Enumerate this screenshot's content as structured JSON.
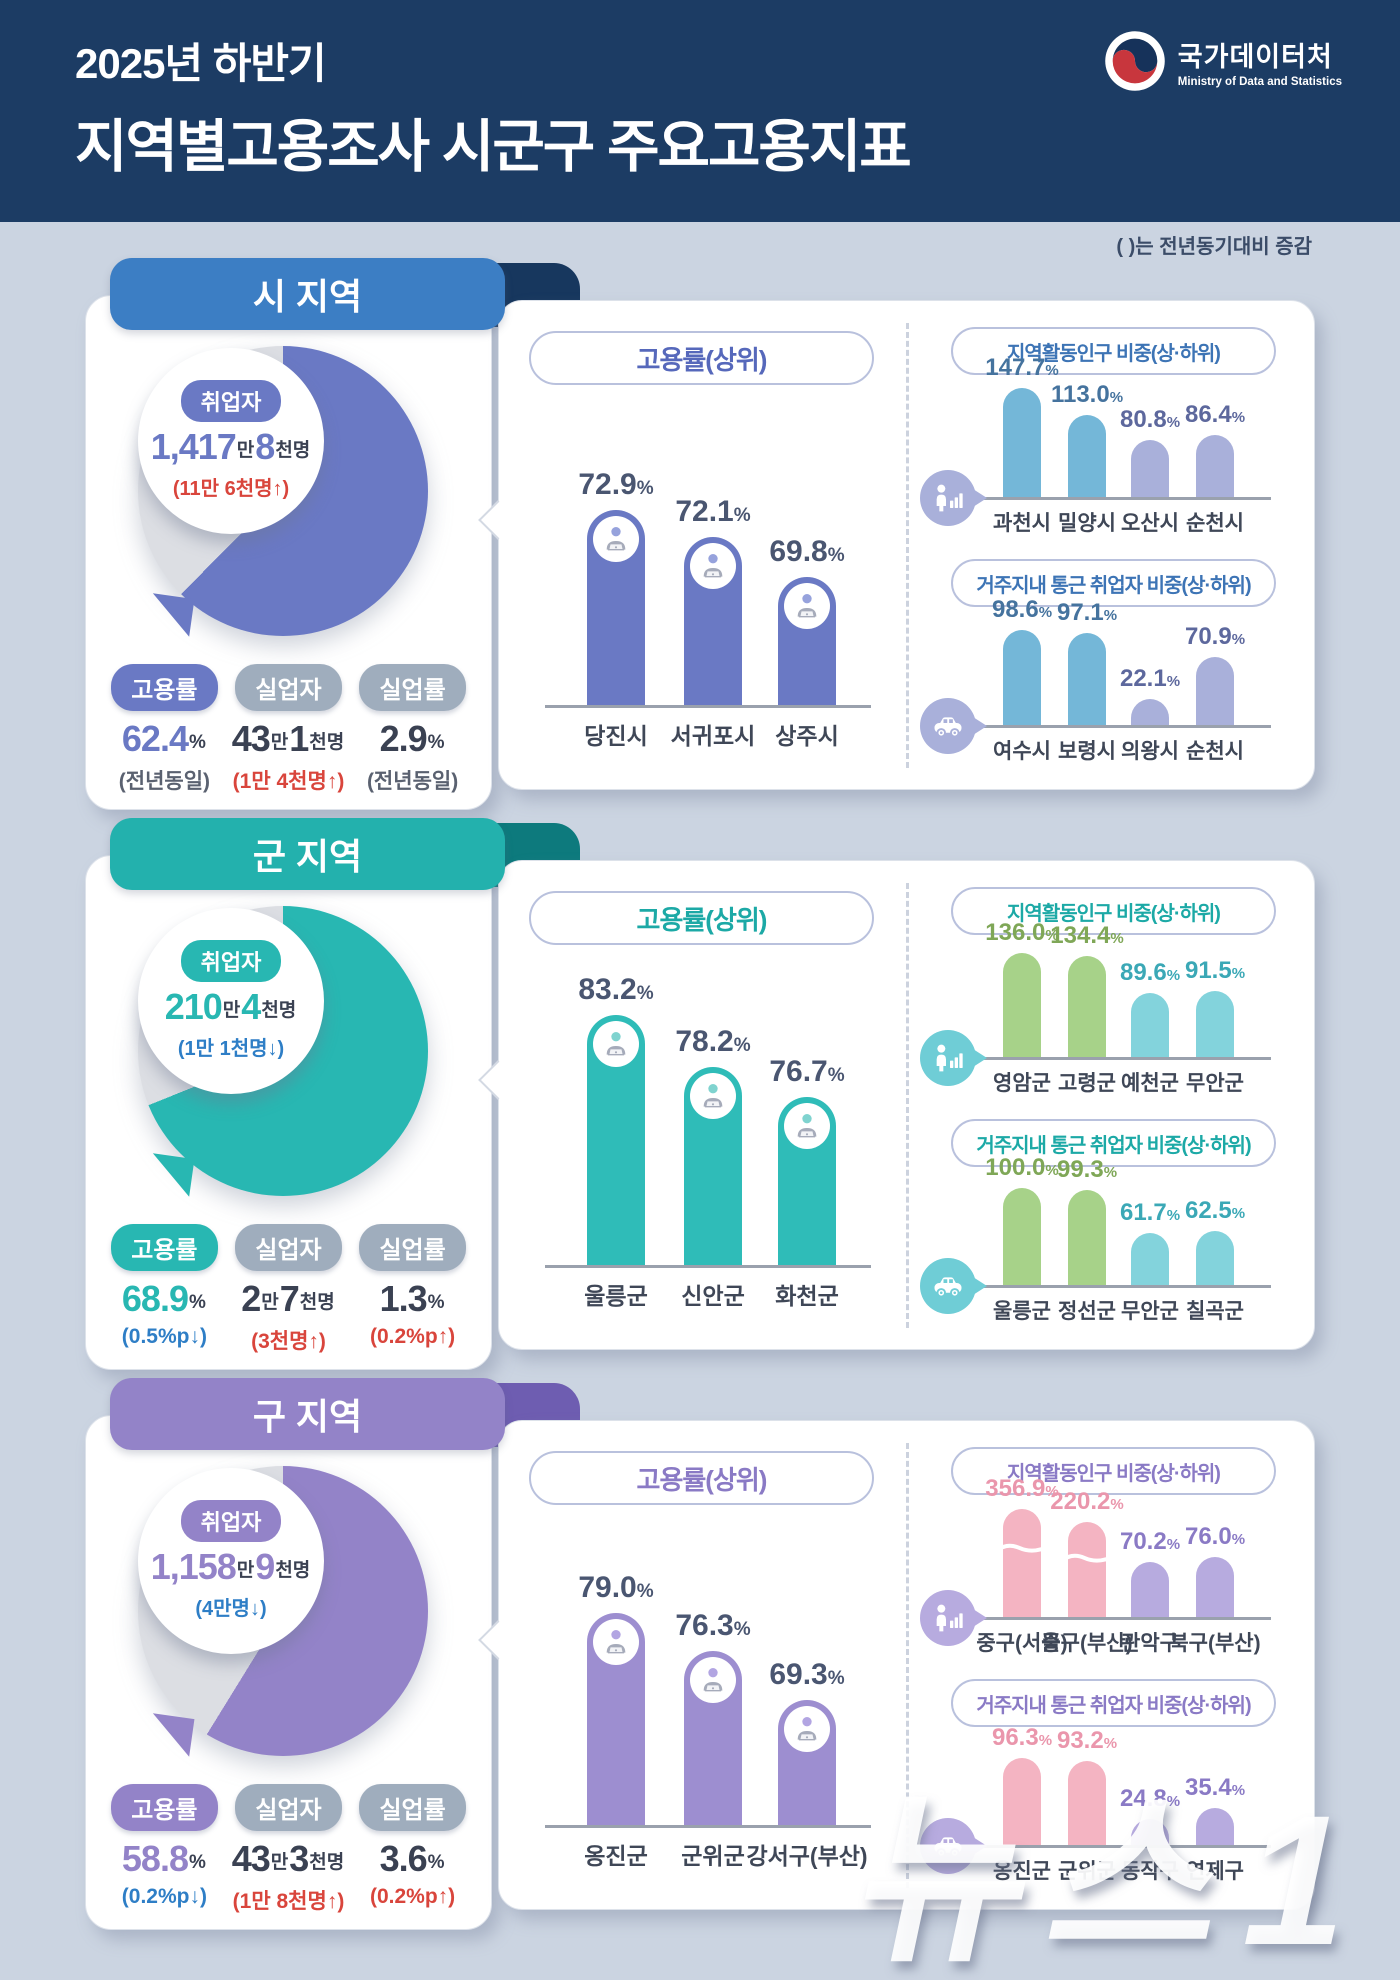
{
  "header": {
    "subtitle": "2025년 하반기",
    "title": "지역별고용조사 시군구 주요고용지표",
    "logo_text": "국가데이터처",
    "logo_subtext": "Ministry of Data and Statistics"
  },
  "note": "(  )는 전년동기대비 증감",
  "watermark": "뉴스1",
  "common_labels": {
    "employed": "취업자",
    "employment_rate": "고용률",
    "unemployed": "실업자",
    "unemployment_rate": "실업률",
    "top_chart": "고용률(상위)",
    "mini1": "지역활동인구 비중(상·하위)",
    "mini2": "거주지내 통근 취업자 비중(상·하위)"
  },
  "palette": {
    "page_bg": "#cbd4e1",
    "header_bg": "#1c3c64",
    "donut_gray": "#dcdee3",
    "badge_gray": "#9fadbd",
    "red": "#d9453c",
    "blue": "#2e7ec6",
    "dark_value": "#3a4152",
    "axis": "#9aa1ad"
  },
  "sections": [
    {
      "tab": "시 지역",
      "colors": {
        "acc": "#3c7ec4",
        "flap": "#17375e",
        "don": "#6a79c4",
        "bar": "#6a79c4",
        "pillText": "#5668bb",
        "miniTitle": "#3d74b5",
        "hi": "#74b7d8",
        "hiLab": "#45739e",
        "lo": "#a9b0da",
        "loLab": "#5d689d",
        "icn": "#a9b0da",
        "head": "#96a2dc"
      },
      "donut": {
        "pct": 62.4,
        "badge": "취업자",
        "parts": [
          [
            "1,417",
            "b"
          ],
          [
            "만",
            "s"
          ],
          [
            "8",
            "b"
          ],
          [
            "천명",
            "s"
          ]
        ],
        "note": "(11만 6천명↑)",
        "noteColor": "red"
      },
      "stats": [
        {
          "label": "고용률",
          "badge": "accent",
          "parts": [
            [
              "62.4",
              "b"
            ],
            [
              "%",
              "s"
            ]
          ],
          "valueColor": "accent",
          "note": "(전년동일)",
          "noteColor": "dark"
        },
        {
          "label": "실업자",
          "badge": "gray",
          "parts": [
            [
              "43",
              "b"
            ],
            [
              "만",
              "s"
            ],
            [
              "1",
              "b"
            ],
            [
              "천명",
              "s"
            ]
          ],
          "valueColor": "dark",
          "note": "(1만 4천명↑)",
          "noteColor": "red"
        },
        {
          "label": "실업률",
          "badge": "gray",
          "parts": [
            [
              "2.9",
              "b"
            ],
            [
              "%",
              "s"
            ]
          ],
          "valueColor": "dark",
          "note": "(전년동일)",
          "noteColor": "dark"
        }
      ],
      "main": {
        "title": "고용률(상위)",
        "cats": [
          "당진시",
          "서귀포시",
          "상주시"
        ],
        "vals": [
          72.9,
          72.1,
          69.8
        ],
        "heights": [
          195,
          168,
          128
        ]
      },
      "minis": [
        {
          "title": "지역활동인구 비중(상·하위)",
          "icon": "people",
          "cats": [
            "과천시",
            "밀양시",
            "오산시",
            "순천시"
          ],
          "vals": [
            147.7,
            113.0,
            80.8,
            86.4
          ],
          "heights": [
            109,
            82,
            57,
            62
          ],
          "tiers": [
            "hi",
            "hi",
            "lo",
            "lo"
          ],
          "breaks": [
            0,
            0,
            0,
            0
          ]
        },
        {
          "title": "거주지내 통근 취업자 비중(상·하위)",
          "icon": "car",
          "cats": [
            "여수시",
            "보령시",
            "의왕시",
            "순천시"
          ],
          "vals": [
            98.6,
            97.1,
            22.1,
            70.9
          ],
          "heights": [
            95,
            92,
            26,
            68
          ],
          "tiers": [
            "hi",
            "hi",
            "lo",
            "lo"
          ],
          "breaks": [
            0,
            0,
            0,
            0
          ]
        }
      ]
    },
    {
      "tab": "군 지역",
      "colors": {
        "acc": "#23b1ad",
        "flap": "#0d7a7d",
        "don": "#28b7b2",
        "bar": "#2fbcb8",
        "pillText": "#1ca9a6",
        "miniTitle": "#1ca9a6",
        "hi": "#a7d289",
        "hiLab": "#7fa757",
        "lo": "#83d3dc",
        "loLab": "#3ba8b6",
        "icn": "#6fcdd6",
        "head": "#7fd3cf"
      },
      "donut": {
        "pct": 68.9,
        "badge": "취업자",
        "parts": [
          [
            "210",
            "b"
          ],
          [
            "만",
            "s"
          ],
          [
            "4",
            "b"
          ],
          [
            "천명",
            "s"
          ]
        ],
        "note": "(1만 1천명↓)",
        "noteColor": "blue"
      },
      "stats": [
        {
          "label": "고용률",
          "badge": "accent",
          "parts": [
            [
              "68.9",
              "b"
            ],
            [
              "%",
              "s"
            ]
          ],
          "valueColor": "accent",
          "note": "(0.5%p↓)",
          "noteColor": "blue"
        },
        {
          "label": "실업자",
          "badge": "gray",
          "parts": [
            [
              "2",
              "b"
            ],
            [
              "만",
              "s"
            ],
            [
              "7",
              "b"
            ],
            [
              "천명",
              "s"
            ]
          ],
          "valueColor": "dark",
          "note": "(3천명↑)",
          "noteColor": "red"
        },
        {
          "label": "실업률",
          "badge": "gray",
          "parts": [
            [
              "1.3",
              "b"
            ],
            [
              "%",
              "s"
            ]
          ],
          "valueColor": "dark",
          "note": "(0.2%p↑)",
          "noteColor": "red"
        }
      ],
      "main": {
        "title": "고용률(상위)",
        "cats": [
          "울릉군",
          "신안군",
          "화천군"
        ],
        "vals": [
          83.2,
          78.2,
          76.7
        ],
        "heights": [
          250,
          198,
          168
        ]
      },
      "minis": [
        {
          "title": "지역활동인구 비중(상·하위)",
          "icon": "people",
          "cats": [
            "영암군",
            "고령군",
            "예천군",
            "무안군"
          ],
          "vals": [
            136.0,
            134.4,
            89.6,
            91.5
          ],
          "heights": [
            104,
            101,
            64,
            66
          ],
          "tiers": [
            "hi",
            "hi",
            "lo",
            "lo"
          ],
          "breaks": [
            0,
            0,
            0,
            0
          ]
        },
        {
          "title": "거주지내 통근 취업자 비중(상·하위)",
          "icon": "car",
          "cats": [
            "울릉군",
            "정선군",
            "무안군",
            "칠곡군"
          ],
          "vals": [
            100.0,
            99.3,
            61.7,
            62.5
          ],
          "heights": [
            97,
            95,
            52,
            54
          ],
          "tiers": [
            "hi",
            "hi",
            "lo",
            "lo"
          ],
          "breaks": [
            0,
            0,
            0,
            0
          ]
        }
      ]
    },
    {
      "tab": "구 지역",
      "colors": {
        "acc": "#9383c8",
        "flap": "#6e5db1",
        "don": "#9383c8",
        "bar": "#9d8ed0",
        "pillText": "#8a7ac5",
        "miniTitle": "#8a7ac5",
        "hi": "#f4b4c2",
        "hiLab": "#ea96ac",
        "lo": "#b7abdf",
        "loLab": "#8a7ac5",
        "icn": "#b7abdf",
        "head": "#b2a5e2"
      },
      "donut": {
        "pct": 58.8,
        "badge": "취업자",
        "parts": [
          [
            "1,158",
            "b"
          ],
          [
            "만",
            "s"
          ],
          [
            "9",
            "b"
          ],
          [
            "천명",
            "s"
          ]
        ],
        "note": "(4만명↓)",
        "noteColor": "blue"
      },
      "stats": [
        {
          "label": "고용률",
          "badge": "accent",
          "parts": [
            [
              "58.8",
              "b"
            ],
            [
              "%",
              "s"
            ]
          ],
          "valueColor": "accent",
          "note": "(0.2%p↓)",
          "noteColor": "blue"
        },
        {
          "label": "실업자",
          "badge": "gray",
          "parts": [
            [
              "43",
              "b"
            ],
            [
              "만",
              "s"
            ],
            [
              "3",
              "b"
            ],
            [
              "천명",
              "s"
            ]
          ],
          "valueColor": "dark",
          "note": "(1만 8천명↑)",
          "noteColor": "red"
        },
        {
          "label": "실업률",
          "badge": "gray",
          "parts": [
            [
              "3.6",
              "b"
            ],
            [
              "%",
              "s"
            ]
          ],
          "valueColor": "dark",
          "note": "(0.2%p↑)",
          "noteColor": "red"
        }
      ],
      "main": {
        "title": "고용률(상위)",
        "cats": [
          "옹진군",
          "군위군",
          "강서구(부산)"
        ],
        "vals": [
          79.0,
          76.3,
          69.3
        ],
        "heights": [
          212,
          174,
          125
        ]
      },
      "minis": [
        {
          "title": "지역활동인구 비중(상·하위)",
          "icon": "people",
          "cats": [
            "중구(서울)",
            "중구(부산)",
            "관악구",
            "북구(부산)"
          ],
          "vals": [
            356.9,
            220.2,
            70.2,
            76.0
          ],
          "heights": [
            108,
            95,
            55,
            60
          ],
          "tiers": [
            "hi",
            "hi",
            "lo",
            "lo"
          ],
          "breaks": [
            1,
            1,
            0,
            0
          ]
        },
        {
          "title": "거주지내 통근 취업자 비중(상·하위)",
          "icon": "car",
          "cats": [
            "옹진군",
            "군위군",
            "동작구",
            "연제구"
          ],
          "vals": [
            96.3,
            93.2,
            24.8,
            35.4
          ],
          "heights": [
            87,
            84,
            26,
            37
          ],
          "tiers": [
            "hi",
            "hi",
            "lo",
            "lo"
          ],
          "breaks": [
            0,
            0,
            0,
            0
          ]
        }
      ]
    }
  ],
  "chart_data": [
    {
      "type": "pie",
      "subtype": "donut",
      "title": "시 지역 고용률",
      "values": [
        62.4,
        37.6
      ],
      "labels": [
        "고용률",
        "나머지"
      ],
      "center_text": "취업자 1,417만 8천명 (11만 6천명↑)"
    },
    {
      "type": "bar",
      "title": "시 지역 고용률(상위)",
      "categories": [
        "당진시",
        "서귀포시",
        "상주시"
      ],
      "values": [
        72.9,
        72.1,
        69.8
      ],
      "unit": "%"
    },
    {
      "type": "bar",
      "title": "시 지역 지역활동인구 비중(상·하위)",
      "categories": [
        "과천시",
        "밀양시",
        "오산시",
        "순천시"
      ],
      "values": [
        147.7,
        113.0,
        80.8,
        86.4
      ],
      "unit": "%"
    },
    {
      "type": "bar",
      "title": "시 지역 거주지내 통근 취업자 비중(상·하위)",
      "categories": [
        "여수시",
        "보령시",
        "의왕시",
        "순천시"
      ],
      "values": [
        98.6,
        97.1,
        22.1,
        70.9
      ],
      "unit": "%"
    },
    {
      "type": "pie",
      "subtype": "donut",
      "title": "군 지역 고용률",
      "values": [
        68.9,
        31.1
      ],
      "labels": [
        "고용률",
        "나머지"
      ],
      "center_text": "취업자 210만 4천명 (1만 1천명↓)"
    },
    {
      "type": "bar",
      "title": "군 지역 고용률(상위)",
      "categories": [
        "울릉군",
        "신안군",
        "화천군"
      ],
      "values": [
        83.2,
        78.2,
        76.7
      ],
      "unit": "%"
    },
    {
      "type": "bar",
      "title": "군 지역 지역활동인구 비중(상·하위)",
      "categories": [
        "영암군",
        "고령군",
        "예천군",
        "무안군"
      ],
      "values": [
        136.0,
        134.4,
        89.6,
        91.5
      ],
      "unit": "%"
    },
    {
      "type": "bar",
      "title": "군 지역 거주지내 통근 취업자 비중(상·하위)",
      "categories": [
        "울릉군",
        "정선군",
        "무안군",
        "칠곡군"
      ],
      "values": [
        100.0,
        99.3,
        61.7,
        62.5
      ],
      "unit": "%"
    },
    {
      "type": "pie",
      "subtype": "donut",
      "title": "구 지역 고용률",
      "values": [
        58.8,
        41.2
      ],
      "labels": [
        "고용률",
        "나머지"
      ],
      "center_text": "취업자 1,158만 9천명 (4만명↓)"
    },
    {
      "type": "bar",
      "title": "구 지역 고용률(상위)",
      "categories": [
        "옹진군",
        "군위군",
        "강서구(부산)"
      ],
      "values": [
        79.0,
        76.3,
        69.3
      ],
      "unit": "%"
    },
    {
      "type": "bar",
      "title": "구 지역 지역활동인구 비중(상·하위)",
      "categories": [
        "중구(서울)",
        "중구(부산)",
        "관악구",
        "북구(부산)"
      ],
      "values": [
        356.9,
        220.2,
        70.2,
        76.0
      ],
      "unit": "%",
      "note": "상위 2개 막대는 축 생략(물결) 표시"
    },
    {
      "type": "bar",
      "title": "구 지역 거주지내 통근 취업자 비중(상·하위)",
      "categories": [
        "옹진군",
        "군위군",
        "동작구",
        "연제구"
      ],
      "values": [
        96.3,
        93.2,
        24.8,
        35.4
      ],
      "unit": "%"
    }
  ]
}
